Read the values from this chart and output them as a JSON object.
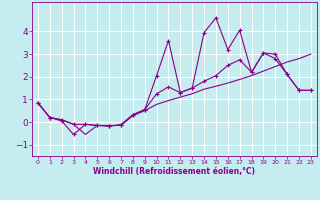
{
  "xlabel": "Windchill (Refroidissement éolien,°C)",
  "xlim": [
    -0.5,
    23.5
  ],
  "ylim": [
    -1.5,
    5.3
  ],
  "yticks": [
    -1,
    0,
    1,
    2,
    3,
    4
  ],
  "xticks": [
    0,
    1,
    2,
    3,
    4,
    5,
    6,
    7,
    8,
    9,
    10,
    11,
    12,
    13,
    14,
    15,
    16,
    17,
    18,
    19,
    20,
    21,
    22,
    23
  ],
  "bg_color": "#c5ecee",
  "line_color": "#8b008b",
  "grid_color": "#ffffff",
  "series1_x": [
    0,
    1,
    2,
    3,
    4,
    5,
    6,
    7,
    8,
    9,
    10,
    11,
    12,
    13,
    14,
    15,
    16,
    17,
    18,
    19,
    20,
    21,
    22,
    23
  ],
  "series1_y": [
    0.85,
    0.2,
    0.1,
    -0.1,
    -0.55,
    -0.15,
    -0.15,
    -0.15,
    0.28,
    0.5,
    0.78,
    0.95,
    1.1,
    1.25,
    1.45,
    1.58,
    1.72,
    1.88,
    2.05,
    2.25,
    2.45,
    2.65,
    2.8,
    3.0
  ],
  "series2_x": [
    0,
    1,
    2,
    3,
    4,
    5,
    6,
    7,
    8,
    9,
    10,
    11,
    12,
    13,
    14,
    15,
    16,
    17,
    18,
    19,
    20,
    21,
    22,
    23
  ],
  "series2_y": [
    0.85,
    0.2,
    0.05,
    -0.55,
    -0.1,
    -0.15,
    -0.18,
    -0.12,
    0.32,
    0.55,
    2.05,
    3.6,
    1.3,
    1.5,
    3.95,
    4.6,
    3.2,
    4.05,
    2.2,
    3.05,
    2.8,
    2.1,
    1.4,
    1.4
  ],
  "series3_x": [
    0,
    1,
    2,
    3,
    4,
    5,
    6,
    7,
    8,
    9,
    10,
    11,
    12,
    13,
    14,
    15,
    16,
    17,
    18,
    19,
    20,
    21,
    22,
    23
  ],
  "series3_y": [
    0.85,
    0.2,
    0.1,
    -0.1,
    -0.1,
    -0.15,
    -0.18,
    -0.12,
    0.32,
    0.55,
    1.25,
    1.55,
    1.3,
    1.5,
    1.8,
    2.05,
    2.5,
    2.75,
    2.2,
    3.05,
    3.0,
    2.1,
    1.4,
    1.4
  ],
  "xlabel_fontsize": 5.5,
  "ytick_fontsize": 6.5,
  "xtick_fontsize": 4.5
}
